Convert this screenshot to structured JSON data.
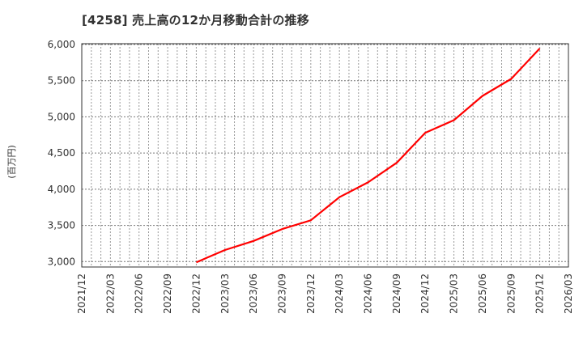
{
  "header": {
    "title": "[4258]  売上高の12か月移動合計の推移"
  },
  "colors": {
    "line": "#ff0000",
    "grid": "#999999",
    "axis": "#333333",
    "background": "#ffffff"
  },
  "chart_data": {
    "type": "line",
    "title": "[4258]  売上高の12か月移動合計の推移",
    "xlabel": "",
    "ylabel": "(百万円)",
    "ylim": [
      2925,
      6000
    ],
    "yticks": [
      3000,
      3500,
      4000,
      4500,
      5000,
      5500,
      6000
    ],
    "ytick_labels": [
      "3,000",
      "3,500",
      "4,000",
      "4,500",
      "5,000",
      "5,500",
      "6,000"
    ],
    "xticks": [
      "2021/12",
      "2022/03",
      "2022/06",
      "2022/09",
      "2022/12",
      "2023/03",
      "2023/06",
      "2023/09",
      "2023/12",
      "2024/03",
      "2024/06",
      "2024/09",
      "2024/12",
      "2025/03",
      "2025/06",
      "2025/09",
      "2025/12",
      "2026/03"
    ],
    "grid": true,
    "legend": null,
    "series": [
      {
        "name": "売上高の12か月移動合計",
        "x": [
          "2022/12",
          "2023/03",
          "2023/06",
          "2023/09",
          "2023/12",
          "2024/03",
          "2024/06",
          "2024/09",
          "2024/12",
          "2025/03",
          "2025/06",
          "2025/09",
          "2025/12"
        ],
        "values": [
          2990,
          3160,
          3285,
          3450,
          3570,
          3890,
          4095,
          4365,
          4780,
          4955,
          5290,
          5525,
          5945
        ]
      }
    ]
  }
}
